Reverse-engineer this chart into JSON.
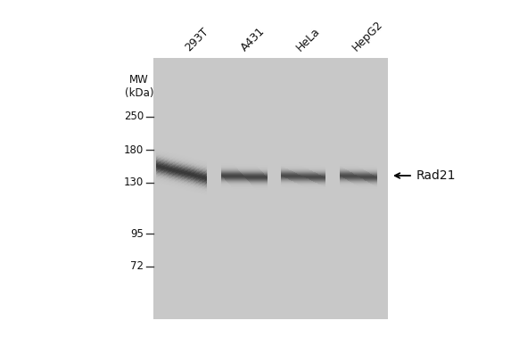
{
  "gel_bg": "#c8c8c8",
  "white_bg": "#ffffff",
  "lane_labels": [
    "293T",
    "A431",
    "HeLa",
    "HepG2"
  ],
  "mw_label": "MW\n(kDa)",
  "mw_markers": [
    250,
    180,
    130,
    95,
    72
  ],
  "band_label": "Rad21",
  "band_color": "#222222",
  "marker_color": "#333333",
  "label_color": "#111111",
  "font_size_labels": 9,
  "font_size_mw": 8.5,
  "font_size_markers": 8.5,
  "font_size_band_label": 10
}
